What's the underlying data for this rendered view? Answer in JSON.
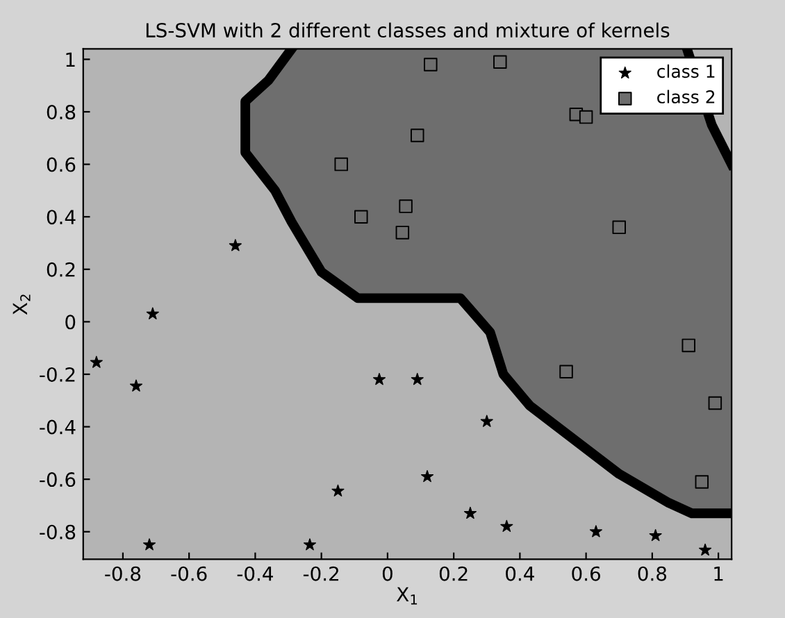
{
  "chart_data": {
    "type": "scatter",
    "title": "LS-SVM with 2 different classes and mixture of kernels",
    "xlabel": "X$_{1}$",
    "ylabel": "X$_{2}$",
    "xlim": [
      -0.92,
      1.04
    ],
    "ylim": [
      -0.905,
      1.04
    ],
    "xticks": [
      -0.8,
      -0.6,
      -0.4,
      -0.2,
      0,
      0.2,
      0.4,
      0.6,
      0.8,
      1
    ],
    "yticks": [
      -0.8,
      -0.6,
      -0.4,
      -0.2,
      0,
      0.2,
      0.4,
      0.6,
      0.8,
      1
    ],
    "grid": false,
    "legend": "top right",
    "series": [
      {
        "name": "class 1",
        "color": "#000000",
        "marker": "star",
        "x": [
          -0.46,
          -0.71,
          -0.88,
          -0.76,
          -0.72,
          -0.235,
          -0.15,
          -0.025,
          0.09,
          0.3,
          0.12,
          0.25,
          0.36,
          0.63,
          0.81,
          0.96
        ],
        "values": [
          0.29,
          0.03,
          -0.155,
          -0.245,
          -0.85,
          -0.85,
          -0.645,
          -0.22,
          -0.22,
          -0.38,
          -0.59,
          -0.73,
          -0.78,
          -0.8,
          -0.815,
          -0.87
        ]
      },
      {
        "name": "class 2",
        "color": "#000000",
        "marker": "square",
        "x": [
          -0.14,
          -0.08,
          0.055,
          0.045,
          0.09,
          0.13,
          0.34,
          0.57,
          0.6,
          0.7,
          0.91,
          0.54,
          0.99,
          0.95
        ],
        "values": [
          0.6,
          0.4,
          0.44,
          0.34,
          0.71,
          0.98,
          0.99,
          0.79,
          0.78,
          0.36,
          -0.09,
          -0.19,
          -0.31,
          -0.61
        ]
      },
      {
        "type": "line",
        "color": "#000000",
        "marker": "none",
        "x": [
          -0.29,
          -0.36,
          -0.43,
          -0.43,
          -0.34,
          -0.29,
          -0.2,
          -0.09,
          0.22,
          0.31,
          0.35,
          0.43,
          0.7,
          0.85,
          0.92,
          1.04
        ],
        "values": [
          1.04,
          0.92,
          0.84,
          0.645,
          0.5,
          0.38,
          0.19,
          0.09,
          0.09,
          -0.04,
          -0.2,
          -0.32,
          -0.58,
          -0.69,
          -0.73,
          -0.73
        ]
      },
      {
        "type": "line",
        "color": "#000000",
        "marker": "none",
        "x": [
          0.905,
          0.98,
          1.04
        ],
        "values": [
          1.04,
          0.75,
          0.6
        ]
      }
    ]
  }
}
